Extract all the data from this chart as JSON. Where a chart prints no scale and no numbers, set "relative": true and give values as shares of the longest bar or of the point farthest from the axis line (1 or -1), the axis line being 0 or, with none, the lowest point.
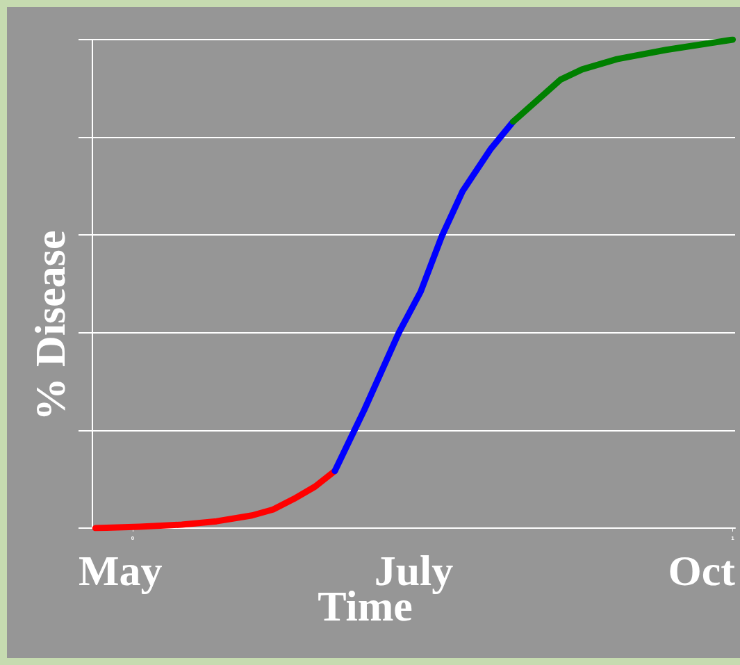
{
  "chart_data": {
    "type": "line",
    "xlabel": "Time",
    "ylabel": "% Disease",
    "relative": true,
    "grid": "y",
    "marker": "none",
    "line_style": "solid",
    "xlim": [
      -0.067,
      1.004
    ],
    "xticks": [
      0,
      1
    ],
    "annotations": [
      "May",
      "July",
      "Oct"
    ],
    "series": [
      {
        "color": "#ff0000",
        "x": [
          -0.062,
          0.012,
          0.082,
          0.14,
          0.199,
          0.234,
          0.269,
          0.304,
          0.337
        ],
        "values": [
          0,
          0.003,
          0.007,
          0.014,
          0.026,
          0.038,
          0.06,
          0.085,
          0.117
        ]
      },
      {
        "color": "#0000ff",
        "x": [
          0.337,
          0.386,
          0.444,
          0.48,
          0.515,
          0.55,
          0.596,
          0.634
        ],
        "values": [
          0.117,
          0.242,
          0.401,
          0.484,
          0.597,
          0.69,
          0.775,
          0.832
        ]
      },
      {
        "color": "#008000",
        "x": [
          0.634,
          0.667,
          0.713,
          0.749,
          0.807,
          0.889,
          1.0
        ],
        "values": [
          0.832,
          0.868,
          0.918,
          0.939,
          0.96,
          0.979,
          1
        ]
      }
    ]
  }
}
